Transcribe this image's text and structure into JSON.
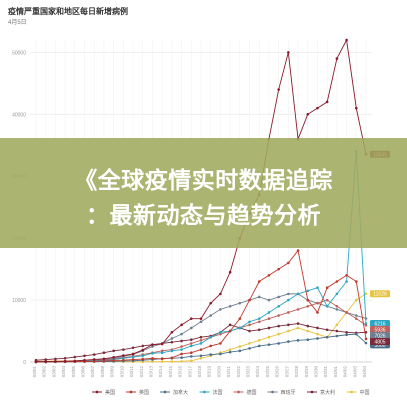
{
  "overlay": {
    "line1": "《全球疫情实时数据追踪",
    "line2": "：最新动态与趋势分析"
  },
  "chart_data": {
    "type": "line",
    "title": "疫情严重国家和地区每日新增病例",
    "subtitle": "4月5日",
    "ylim": [
      0,
      52000
    ],
    "yticks": [
      0,
      10000,
      20000,
      30000,
      40000,
      50000
    ],
    "ytick_labels": [
      "0",
      "10000",
      "20000",
      "30000",
      "40000",
      "50000"
    ],
    "x": [
      "03/01",
      "03/02",
      "03/03",
      "03/04",
      "03/05",
      "03/06",
      "03/07",
      "03/08",
      "03/09",
      "03/10",
      "03/11",
      "03/12",
      "03/13",
      "03/14",
      "03/15",
      "03/16",
      "03/17",
      "03/18",
      "03/19",
      "03/20",
      "03/21",
      "03/22",
      "03/23",
      "03/24",
      "03/25",
      "03/26",
      "03/27",
      "03/28",
      "03/29",
      "03/30",
      "03/31",
      "04/01",
      "04/02",
      "04/03",
      "04/04"
    ],
    "grid": true,
    "legend_position": "bottom",
    "series": [
      {
        "name": "美国",
        "color": "#8b1a2b",
        "end_label": "33549",
        "values": [
          70,
          60,
          100,
          130,
          180,
          290,
          420,
          520,
          760,
          1050,
          1300,
          1950,
          2800,
          2900,
          4800,
          6000,
          7000,
          7000,
          9500,
          11000,
          14500,
          20000,
          24000,
          27000,
          36000,
          44000,
          50000,
          36000,
          40000,
          41000,
          42000,
          49000,
          52000,
          41000,
          33549
        ]
      },
      {
        "name": "英国",
        "color": "#c0392b",
        "end_label": "3735",
        "values": [
          10,
          15,
          40,
          50,
          60,
          80,
          100,
          150,
          250,
          300,
          400,
          480,
          600,
          500,
          680,
          1300,
          1500,
          2000,
          2600,
          3000,
          5000,
          7000,
          10000,
          13000,
          14000,
          15000,
          16000,
          18000,
          10000,
          8000,
          12000,
          13000,
          14000,
          13000,
          3735
        ]
      },
      {
        "name": "加拿大",
        "color": "#4a6f8a",
        "end_label": "3060",
        "values": [
          10,
          15,
          20,
          30,
          40,
          50,
          60,
          80,
          100,
          150,
          200,
          300,
          400,
          550,
          600,
          700,
          900,
          1000,
          1200,
          1300,
          1600,
          1800,
          2200,
          2600,
          2800,
          3000,
          3300,
          3500,
          3600,
          3800,
          4000,
          4200,
          4400,
          4500,
          3060
        ]
      },
      {
        "name": "法国",
        "color": "#2aa7c2",
        "end_label": "6216",
        "values": [
          20,
          30,
          40,
          50,
          80,
          120,
          180,
          200,
          400,
          600,
          800,
          1000,
          1400,
          1500,
          1800,
          2000,
          2600,
          3000,
          4000,
          4800,
          5000,
          5500,
          6500,
          7000,
          8000,
          9000,
          10000,
          11000,
          11500,
          12000,
          9000,
          11000,
          13000,
          34000,
          6216
        ]
      },
      {
        "name": "德国",
        "color": "#c0605a",
        "end_label": "5936",
        "values": [
          20,
          30,
          50,
          60,
          100,
          150,
          200,
          300,
          500,
          700,
          900,
          1200,
          1500,
          1800,
          2000,
          2500,
          3000,
          3500,
          4000,
          4500,
          5000,
          5500,
          6000,
          6500,
          7000,
          7500,
          8000,
          8500,
          9000,
          9500,
          10000,
          9000,
          8000,
          7000,
          5936
        ]
      },
      {
        "name": "西班牙",
        "color": "#6e7f8f",
        "end_label": "7026",
        "values": [
          20,
          30,
          50,
          100,
          150,
          200,
          300,
          400,
          600,
          900,
          1200,
          1800,
          2500,
          3000,
          3800,
          4500,
          5500,
          6500,
          7500,
          8500,
          9000,
          9500,
          10000,
          10500,
          10000,
          10500,
          11000,
          11000,
          10000,
          9500,
          9000,
          8500,
          8000,
          7500,
          7026
        ]
      },
      {
        "name": "意大利",
        "color": "#7a2a3a",
        "end_label": "4805",
        "values": [
          300,
          400,
          500,
          600,
          800,
          1000,
          1200,
          1500,
          1800,
          2000,
          2300,
          2600,
          2800,
          3000,
          3200,
          3400,
          3600,
          4000,
          4200,
          4800,
          6000,
          5500,
          5000,
          5200,
          5500,
          5800,
          6000,
          6200,
          5800,
          5500,
          5200,
          5000,
          4800,
          4700,
          4805
        ]
      },
      {
        "name": "中国",
        "color": "#e8c440",
        "end_label": "11026",
        "values": [
          100,
          120,
          150,
          160,
          150,
          140,
          120,
          100,
          80,
          60,
          50,
          40,
          50,
          60,
          80,
          100,
          200,
          600,
          1000,
          1500,
          2000,
          2500,
          3000,
          3500,
          4000,
          4500,
          5000,
          5500,
          5000,
          4500,
          4000,
          6000,
          8000,
          10000,
          11026
        ]
      }
    ]
  }
}
